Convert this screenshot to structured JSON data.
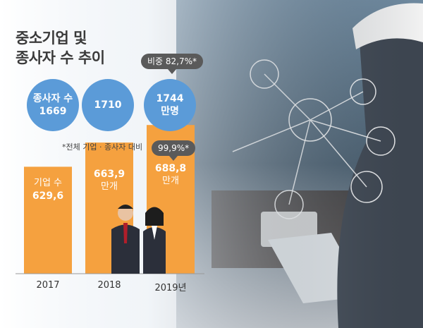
{
  "title_line1": "중소기업 및",
  "title_line2": "종사자 수 추이",
  "employee_label": "종사자 수",
  "employee_values": [
    "1669",
    "1710",
    "1744"
  ],
  "employee_unit_last": "만명",
  "share_badge_top": "비중 82,7%*",
  "share_badge_bottom": "99,9%*",
  "footnote": "*전체 기업 · 종사자 대비",
  "company_label": "기업 수",
  "company_values_text": [
    "629,6",
    "663,9",
    "688,8"
  ],
  "company_unit": "만개",
  "years_text": [
    "2017",
    "2018",
    "2019년"
  ],
  "colors": {
    "bar": "#f5a13f",
    "circle": "#5b9bd8",
    "badge": "#5a5a5a"
  },
  "chart_data": {
    "type": "bar",
    "categories": [
      "2017",
      "2018",
      "2019"
    ],
    "series": [
      {
        "name": "기업 수",
        "values": [
          629.6,
          663.9,
          688.8
        ]
      },
      {
        "name": "종사자 수",
        "values": [
          1669,
          1710,
          1744
        ]
      }
    ],
    "title": "중소기업 및 종사자 수 추이",
    "annotations": [
      "비중 82,7%*",
      "99,9%*",
      "*전체 기업 · 종사자 대비"
    ]
  }
}
